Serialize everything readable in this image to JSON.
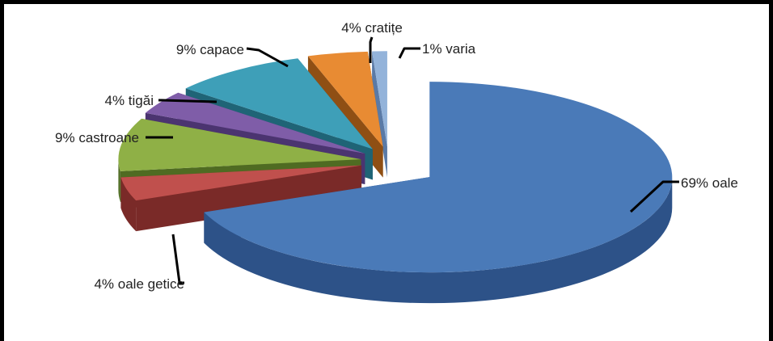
{
  "chart_data": {
    "type": "pie",
    "style": "3d-exploded",
    "slices": [
      {
        "label": "oale",
        "value": 69,
        "text": "69%  oale",
        "color": "#4a7ab8",
        "side": "#2d5288"
      },
      {
        "label": "oale getice",
        "value": 4,
        "text": "4%  oale getice",
        "color": "#c0504d",
        "side": "#7a2a28"
      },
      {
        "label": "castroane",
        "value": 9,
        "text": "9% castroane",
        "color": "#8fb046",
        "side": "#4f6b22"
      },
      {
        "label": "tigăi",
        "value": 4,
        "text": "4% tigăi",
        "color": "#7f5da8",
        "side": "#4b3470"
      },
      {
        "label": "capace",
        "value": 9,
        "text": "9% capace",
        "color": "#3e9fb8",
        "side": "#1f6476"
      },
      {
        "label": "cratițe",
        "value": 4,
        "text": "4% cratițe",
        "color": "#e88b33",
        "side": "#8f4f14"
      },
      {
        "label": "varia",
        "value": 1,
        "text": "1%  varia",
        "color": "#93b3da",
        "side": "#5a7aa6"
      }
    ]
  }
}
